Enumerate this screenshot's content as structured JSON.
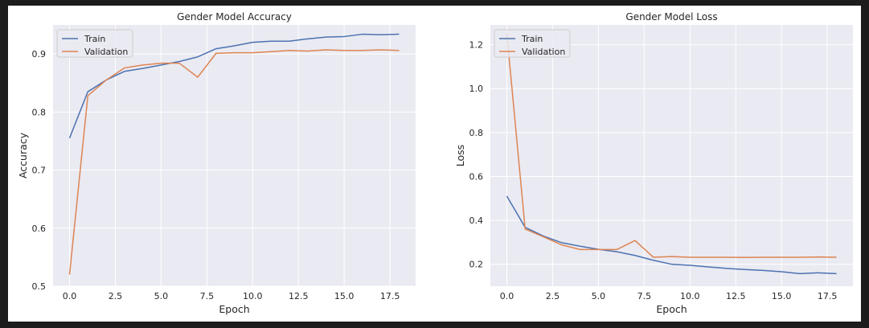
{
  "chart_data": [
    {
      "type": "line",
      "title": "Gender Model Accuracy",
      "xlabel": "Epoch",
      "ylabel": "Accuracy",
      "xlim": [
        -0.9,
        18.9
      ],
      "ylim": [
        0.5,
        0.95
      ],
      "xticks": [
        0,
        2.5,
        5,
        7.5,
        10,
        12.5,
        15,
        17.5
      ],
      "xtick_labels": [
        "0.0",
        "2.5",
        "5.0",
        "7.5",
        "10.0",
        "12.5",
        "15.0",
        "17.5"
      ],
      "yticks": [
        0.5,
        0.6,
        0.7,
        0.8,
        0.9
      ],
      "ytick_labels": [
        "0.5",
        "0.6",
        "0.7",
        "0.8",
        "0.9"
      ],
      "grid": true,
      "legend_position": "top-left",
      "x": [
        0,
        1,
        2,
        3,
        4,
        5,
        6,
        7,
        8,
        9,
        10,
        11,
        12,
        13,
        14,
        15,
        16,
        17,
        18
      ],
      "series": [
        {
          "name": "Train",
          "color": "#4c72b0",
          "values": [
            0.755,
            0.835,
            0.855,
            0.87,
            0.875,
            0.881,
            0.887,
            0.895,
            0.909,
            0.914,
            0.92,
            0.922,
            0.922,
            0.926,
            0.929,
            0.93,
            0.934,
            0.933,
            0.934
          ]
        },
        {
          "name": "Validation",
          "color": "#dd8452",
          "values": [
            0.52,
            0.828,
            0.855,
            0.876,
            0.881,
            0.884,
            0.884,
            0.86,
            0.901,
            0.902,
            0.902,
            0.904,
            0.906,
            0.905,
            0.907,
            0.906,
            0.906,
            0.907,
            0.906
          ]
        }
      ]
    },
    {
      "type": "line",
      "title": "Gender Model Loss",
      "xlabel": "Epoch",
      "ylabel": "Loss",
      "xlim": [
        -0.9,
        18.9
      ],
      "ylim": [
        0.1,
        1.29
      ],
      "xticks": [
        0,
        2.5,
        5,
        7.5,
        10,
        12.5,
        15,
        17.5
      ],
      "xtick_labels": [
        "0.0",
        "2.5",
        "5.0",
        "7.5",
        "10.0",
        "12.5",
        "15.0",
        "17.5"
      ],
      "yticks": [
        0.2,
        0.4,
        0.6,
        0.8,
        1.0,
        1.2
      ],
      "ytick_labels": [
        "0.2",
        "0.4",
        "0.6",
        "0.8",
        "1.0",
        "1.2"
      ],
      "grid": true,
      "legend_position": "top-left",
      "x": [
        0,
        1,
        2,
        3,
        4,
        5,
        6,
        7,
        8,
        9,
        10,
        11,
        12,
        13,
        14,
        15,
        16,
        17,
        18
      ],
      "series": [
        {
          "name": "Train",
          "color": "#4c72b0",
          "values": [
            0.51,
            0.368,
            0.328,
            0.298,
            0.282,
            0.268,
            0.257,
            0.24,
            0.218,
            0.2,
            0.195,
            0.188,
            0.181,
            0.176,
            0.172,
            0.166,
            0.157,
            0.161,
            0.157
          ]
        },
        {
          "name": "Validation",
          "color": "#dd8452",
          "values": [
            1.25,
            0.36,
            0.325,
            0.288,
            0.267,
            0.267,
            0.267,
            0.308,
            0.232,
            0.235,
            0.232,
            0.232,
            0.232,
            0.231,
            0.232,
            0.232,
            0.232,
            0.233,
            0.232
          ]
        }
      ]
    }
  ]
}
